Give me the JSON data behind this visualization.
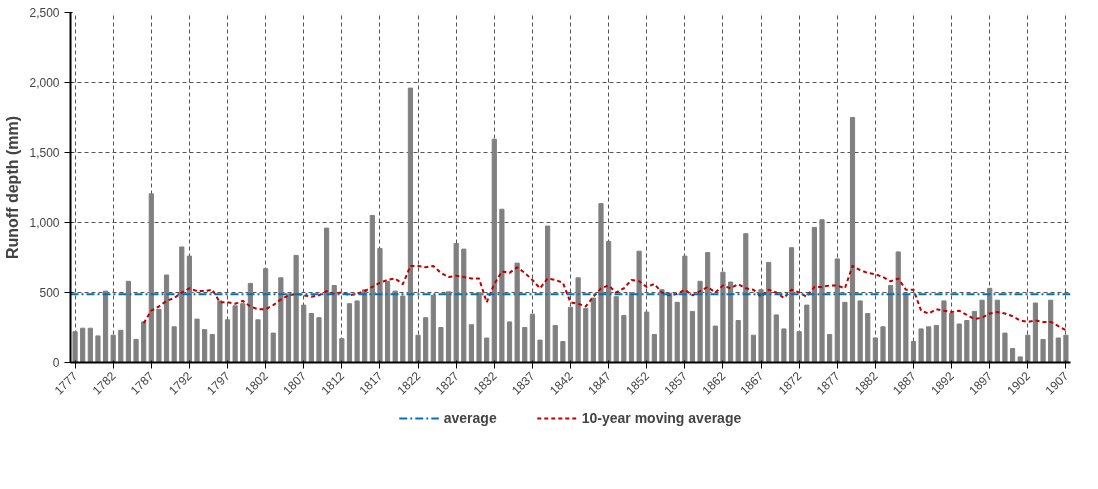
{
  "chart_data": {
    "type": "bar",
    "ylabel": "Runoff depth (mm)",
    "x": [
      1777,
      1778,
      1779,
      1780,
      1781,
      1782,
      1783,
      1784,
      1785,
      1786,
      1787,
      1788,
      1789,
      1790,
      1791,
      1792,
      1793,
      1794,
      1795,
      1796,
      1797,
      1798,
      1799,
      1800,
      1801,
      1802,
      1803,
      1804,
      1805,
      1806,
      1807,
      1808,
      1809,
      1810,
      1811,
      1812,
      1813,
      1814,
      1815,
      1816,
      1817,
      1818,
      1819,
      1820,
      1821,
      1822,
      1823,
      1824,
      1825,
      1826,
      1827,
      1828,
      1829,
      1830,
      1831,
      1832,
      1833,
      1834,
      1835,
      1836,
      1837,
      1838,
      1839,
      1840,
      1841,
      1842,
      1843,
      1844,
      1845,
      1846,
      1847,
      1848,
      1849,
      1850,
      1851,
      1852,
      1853,
      1854,
      1855,
      1856,
      1857,
      1858,
      1859,
      1860,
      1861,
      1862,
      1863,
      1864,
      1865,
      1866,
      1867,
      1868,
      1869,
      1870,
      1871,
      1872,
      1873,
      1874,
      1875,
      1876,
      1877,
      1878,
      1879,
      1880,
      1881,
      1882,
      1883,
      1884,
      1885,
      1886,
      1887,
      1888,
      1889,
      1890,
      1891,
      1892,
      1893,
      1894,
      1895,
      1896,
      1897,
      1898,
      1899,
      1900,
      1901,
      1902,
      1903,
      1904,
      1905,
      1906,
      1907
    ],
    "series": [
      {
        "color": "#808080",
        "values": [
          220,
          245,
          245,
          190,
          510,
          195,
          230,
          580,
          165,
          290,
          1205,
          380,
          625,
          255,
          825,
          760,
          310,
          235,
          200,
          440,
          305,
          405,
          420,
          565,
          305,
          670,
          210,
          605,
          490,
          765,
          410,
          350,
          320,
          960,
          550,
          170,
          420,
          440,
          520,
          1050,
          815,
          580,
          510,
          475,
          1960,
          195,
          320,
          480,
          250,
          505,
          850,
          810,
          270,
          500,
          175,
          1595,
          1095,
          290,
          710,
          250,
          345,
          160,
          975,
          265,
          150,
          395,
          605,
          385,
          460,
          1135,
          865,
          470,
          335,
          500,
          795,
          360,
          200,
          520,
          495,
          430,
          760,
          365,
          580,
          785,
          260,
          645,
          575,
          300,
          920,
          195,
          520,
          715,
          340,
          240,
          820,
          220,
          410,
          965,
          1020,
          200,
          740,
          430,
          1750,
          440,
          350,
          175,
          255,
          550,
          790,
          480,
          150,
          240,
          255,
          265,
          440,
          350,
          275,
          300,
          365,
          445,
          530,
          445,
          210,
          100,
          40,
          195,
          425,
          165,
          445,
          175,
          195
        ]
      },
      {
        "type": "line",
        "name": "10-year moving average",
        "color": "#c00000",
        "line_style": "dashed",
        "x": [
          1786,
          1787,
          1788,
          1789,
          1790,
          1791,
          1792,
          1793,
          1794,
          1795,
          1796,
          1797,
          1798,
          1799,
          1800,
          1801,
          1802,
          1803,
          1804,
          1805,
          1806,
          1807,
          1808,
          1809,
          1810,
          1811,
          1812,
          1813,
          1814,
          1815,
          1816,
          1817,
          1818,
          1819,
          1820,
          1821,
          1822,
          1823,
          1824,
          1825,
          1826,
          1827,
          1828,
          1829,
          1830,
          1831,
          1832,
          1833,
          1834,
          1835,
          1836,
          1837,
          1838,
          1839,
          1840,
          1841,
          1842,
          1843,
          1844,
          1845,
          1846,
          1847,
          1848,
          1849,
          1850,
          1851,
          1852,
          1853,
          1854,
          1855,
          1856,
          1857,
          1858,
          1859,
          1860,
          1861,
          1862,
          1863,
          1864,
          1865,
          1866,
          1867,
          1868,
          1869,
          1870,
          1871,
          1872,
          1873,
          1874,
          1875,
          1876,
          1877,
          1878,
          1879,
          1880,
          1881,
          1882,
          1883,
          1884,
          1885,
          1886,
          1887,
          1888,
          1889,
          1890,
          1891,
          1892,
          1893,
          1894,
          1895,
          1896,
          1897,
          1898,
          1899,
          1900,
          1901,
          1902,
          1903,
          1904,
          1905,
          1906,
          1907
        ],
        "values": [
          280,
          370,
          400,
          440,
          460,
          500,
          530,
          510,
          510,
          520,
          430,
          430,
          420,
          440,
          400,
          380,
          380,
          410,
          450,
          480,
          490,
          480,
          470,
          480,
          510,
          490,
          500,
          480,
          490,
          510,
          540,
          570,
          590,
          600,
          560,
          690,
          690,
          680,
          690,
          640,
          610,
          620,
          610,
          600,
          600,
          430,
          560,
          650,
          640,
          680,
          640,
          590,
          530,
          600,
          590,
          570,
          430,
          420,
          400,
          470,
          530,
          550,
          500,
          530,
          590,
          580,
          540,
          560,
          500,
          480,
          490,
          520,
          480,
          510,
          540,
          500,
          550,
          530,
          560,
          530,
          520,
          470,
          520,
          500,
          460,
          520,
          500,
          470,
          540,
          540,
          550,
          550,
          530,
          690,
          660,
          640,
          630,
          610,
          580,
          600,
          520,
          520,
          370,
          350,
          380,
          370,
          360,
          370,
          340,
          310,
          320,
          350,
          360,
          350,
          330,
          300,
          290,
          300,
          290,
          290,
          260,
          230
        ]
      }
    ],
    "ylim": [
      0,
      2500
    ],
    "yticks": [
      0,
      500,
      {
        "value": 1000,
        "label": "1,000"
      },
      {
        "value": 1500,
        "label": "1,500"
      },
      {
        "value": 2000,
        "label": "2,000"
      },
      {
        "value": 2500,
        "label": "2,500"
      }
    ],
    "xlim": [
      1776.4,
      1907.6
    ],
    "xticks": [
      1777,
      1782,
      1787,
      1792,
      1797,
      1802,
      1807,
      1812,
      1817,
      1822,
      1827,
      1832,
      1837,
      1842,
      1847,
      1852,
      1857,
      1862,
      1867,
      1872,
      1877,
      1882,
      1887,
      1892,
      1897,
      1902,
      1907
    ],
    "grid": true,
    "legend": "bottom",
    "ref_lines": [
      {
        "axis": "y",
        "value": 487,
        "label": "average",
        "color": "#0070c0",
        "line_style": "dashdot"
      }
    ]
  }
}
